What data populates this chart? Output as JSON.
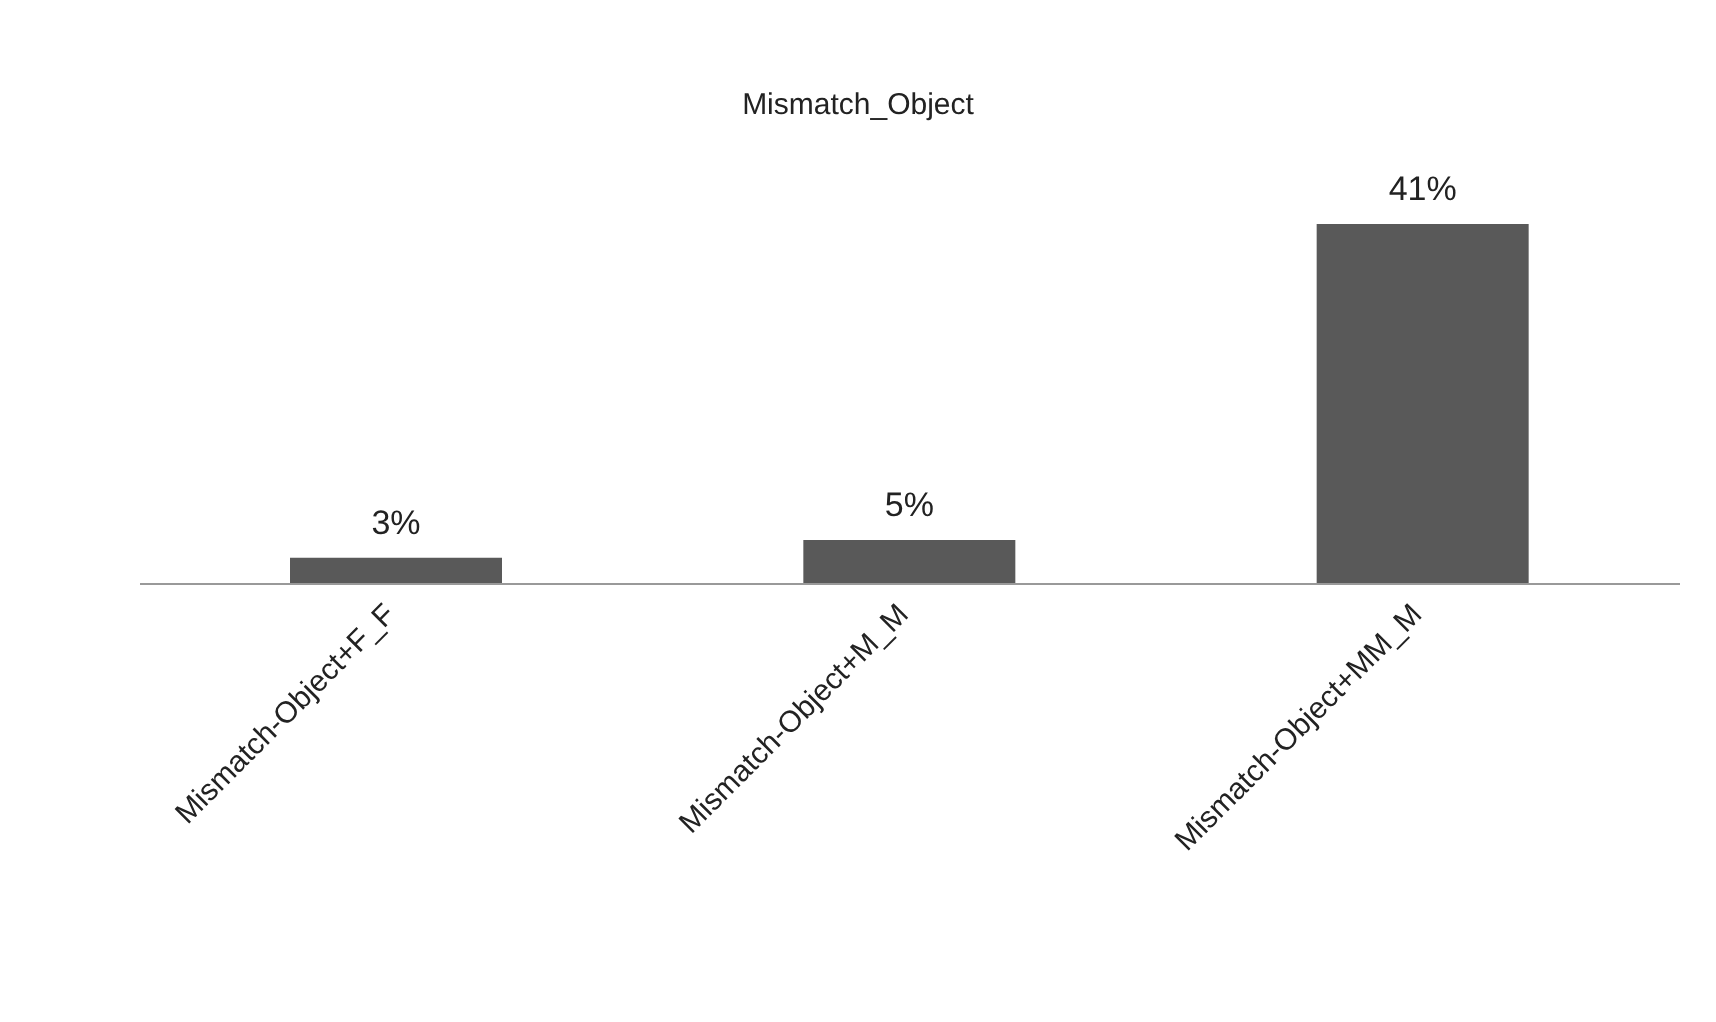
{
  "chart_data": {
    "type": "bar",
    "title": "Mismatch_Object",
    "categories": [
      "Mismatch-Object+F_F",
      "Mismatch-Object+M_M",
      "Mismatch-Object+MM_M"
    ],
    "values": [
      3,
      5,
      41
    ],
    "value_labels": [
      "3%",
      "5%",
      "41%"
    ],
    "color": "#595959",
    "tick_labels": "x",
    "grid": false,
    "legend": false
  }
}
